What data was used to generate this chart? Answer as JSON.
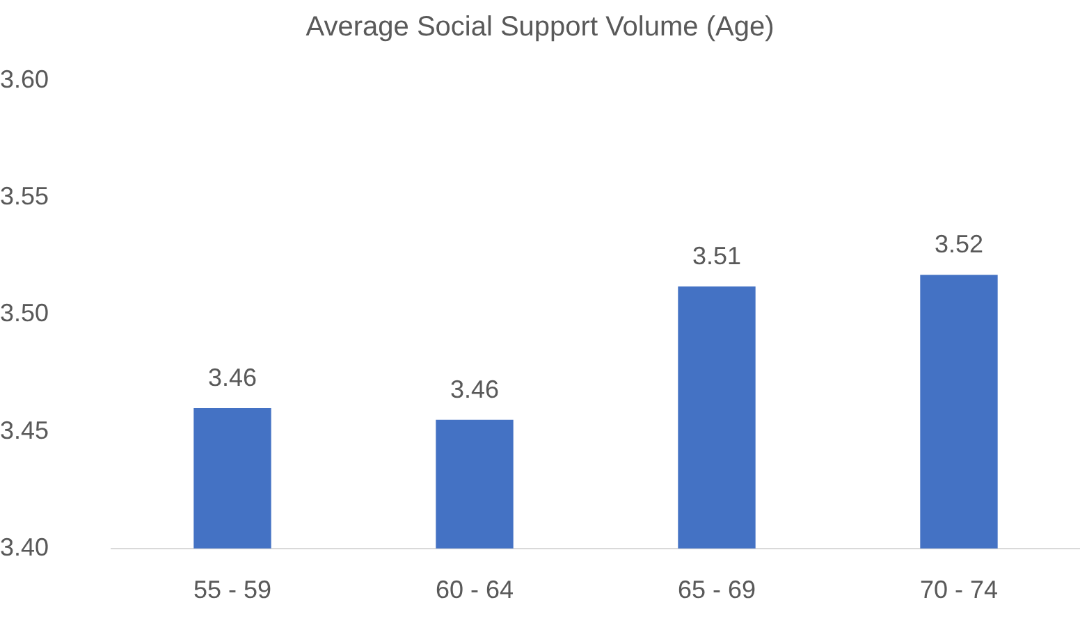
{
  "chart_data": {
    "type": "bar",
    "title": "Average Social Support Volume (Age)",
    "categories": [
      "55 - 59",
      "60 - 64",
      "65 - 69",
      "70 - 74"
    ],
    "values": [
      3.46,
      3.455,
      3.512,
      3.517
    ],
    "value_labels": [
      "3.46",
      "3.46",
      "3.51",
      "3.52"
    ],
    "color": "#4472c4",
    "ylim": [
      3.4,
      3.6
    ],
    "yticks": [
      {
        "value": 3.4,
        "label": "3.40"
      },
      {
        "value": 3.45,
        "label": "3.45"
      },
      {
        "value": 3.5,
        "label": "3.50"
      },
      {
        "value": 3.55,
        "label": "3.55"
      },
      {
        "value": 3.6,
        "label": "3.60"
      }
    ]
  }
}
